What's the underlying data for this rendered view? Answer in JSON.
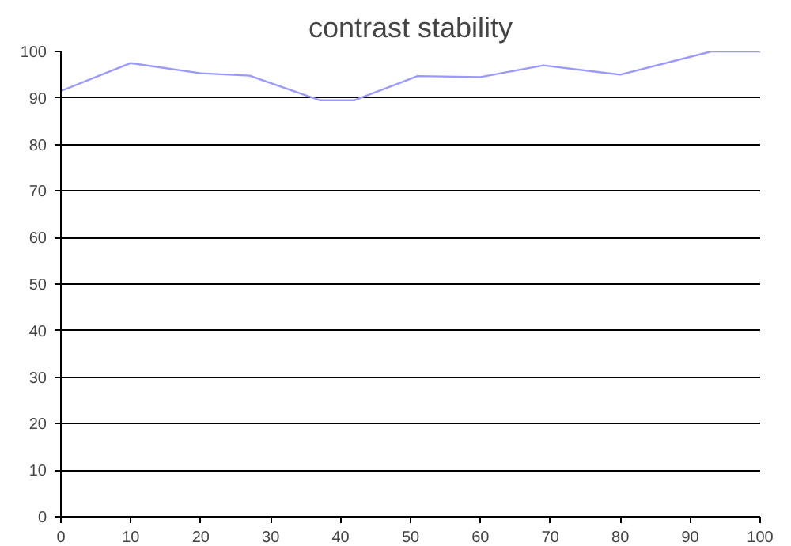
{
  "chart_data": {
    "type": "line",
    "title": "contrast stability",
    "x": [
      0,
      10,
      20,
      27,
      37,
      42,
      51,
      60,
      69,
      80,
      93,
      100
    ],
    "series": [
      {
        "color": "#9999ff",
        "values": [
          91.5,
          97.5,
          95.3,
          94.8,
          89.5,
          89.5,
          94.7,
          94.5,
          97,
          95,
          100,
          100
        ]
      }
    ],
    "xlim": [
      0,
      100
    ],
    "xticks": [
      0,
      10,
      20,
      30,
      40,
      50,
      60,
      70,
      80,
      90,
      100
    ],
    "ylim": [
      0,
      100
    ],
    "yticks": [
      0,
      10,
      20,
      30,
      40,
      50,
      60,
      70,
      80,
      90,
      100
    ],
    "grid": "y"
  }
}
